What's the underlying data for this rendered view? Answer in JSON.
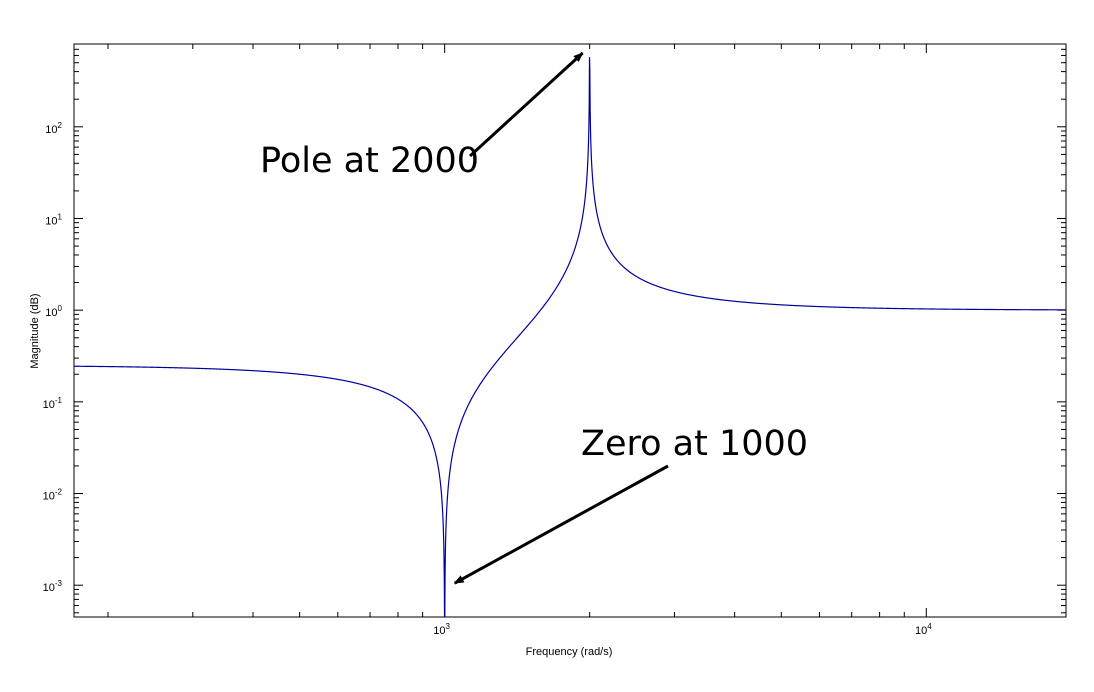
{
  "chart_data": {
    "type": "line",
    "xlabel": "Frequency (rad/s)",
    "ylabel": "Magnitude (dB)",
    "xscale": "log",
    "yscale": "log",
    "xlim": [
      170,
      19500
    ],
    "ylim": [
      0.00045,
      800
    ],
    "grid": false,
    "line_color": "#00009c",
    "x_ticks": [
      {
        "base": "10",
        "exp": "3",
        "value": 1000
      },
      {
        "base": "10",
        "exp": "4",
        "value": 10000
      }
    ],
    "y_ticks": [
      {
        "base": "10",
        "exp": "-3",
        "value": 0.001
      },
      {
        "base": "10",
        "exp": "-2",
        "value": 0.01
      },
      {
        "base": "10",
        "exp": "-1",
        "value": 0.1
      },
      {
        "base": "10",
        "exp": "0",
        "value": 1
      },
      {
        "base": "10",
        "exp": "1",
        "value": 10
      },
      {
        "base": "10",
        "exp": "2",
        "value": 100
      }
    ],
    "series": [
      {
        "transfer_function": "|s^2 + 1000^2| / |s^2 + 2000^2|",
        "zero_frequency": 1000,
        "pole_frequency": 2000
      }
    ],
    "annotations": [
      {
        "text": "Pole at 2000",
        "target": {
          "x": 2000,
          "y": 800
        }
      },
      {
        "text": "Zero at 1000",
        "target": {
          "x": 1000,
          "y": 0.001
        }
      }
    ]
  }
}
